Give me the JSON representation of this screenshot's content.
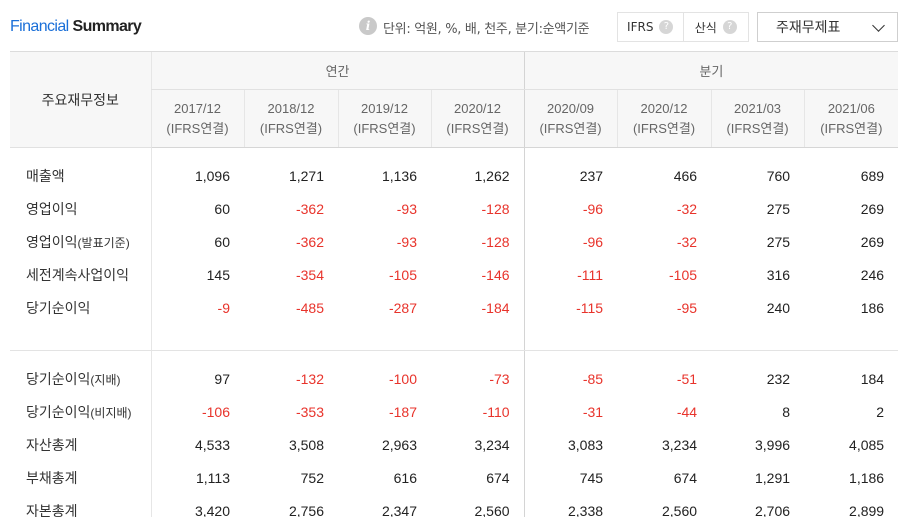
{
  "header": {
    "title_part1": "Financial",
    "title_part2": "Summary",
    "unit_text": "단위: 억원, %, 배, 천주, 분기:순액기준",
    "toggle_options": [
      "IFRS",
      "산식"
    ],
    "dropdown_value": "주재무제표"
  },
  "table": {
    "label_header": "주요재무정보",
    "group_annual": "연간",
    "group_quarter": "분기",
    "periods": [
      {
        "date": "2017/12",
        "basis": "(IFRS연결)"
      },
      {
        "date": "2018/12",
        "basis": "(IFRS연결)"
      },
      {
        "date": "2019/12",
        "basis": "(IFRS연결)"
      },
      {
        "date": "2020/12",
        "basis": "(IFRS연결)"
      },
      {
        "date": "2020/09",
        "basis": "(IFRS연결)"
      },
      {
        "date": "2020/12",
        "basis": "(IFRS연결)"
      },
      {
        "date": "2021/03",
        "basis": "(IFRS연결)"
      },
      {
        "date": "2021/06",
        "basis": "(IFRS연결)"
      }
    ],
    "rows": [
      {
        "label": "매출액",
        "values": [
          "1,096",
          "1,271",
          "1,136",
          "1,262",
          "237",
          "466",
          "760",
          "689"
        ]
      },
      {
        "label": "영업이익",
        "values": [
          "60",
          "-362",
          "-93",
          "-128",
          "-96",
          "-32",
          "275",
          "269"
        ]
      },
      {
        "label": "영업이익",
        "label_suffix": "(발표기준)",
        "values": [
          "60",
          "-362",
          "-93",
          "-128",
          "-96",
          "-32",
          "275",
          "269"
        ]
      },
      {
        "label": "세전계속사업이익",
        "values": [
          "145",
          "-354",
          "-105",
          "-146",
          "-111",
          "-105",
          "316",
          "246"
        ]
      },
      {
        "label": "당기순이익",
        "values": [
          "-9",
          "-485",
          "-287",
          "-184",
          "-115",
          "-95",
          "240",
          "186"
        ]
      },
      {
        "label": "당기순이익",
        "label_suffix": "(지배)",
        "values": [
          "97",
          "-132",
          "-100",
          "-73",
          "-85",
          "-51",
          "232",
          "184"
        ]
      },
      {
        "label": "당기순이익",
        "label_suffix": "(비지배)",
        "values": [
          "-106",
          "-353",
          "-187",
          "-110",
          "-31",
          "-44",
          "8",
          "2"
        ]
      },
      {
        "label": "자산총계",
        "values": [
          "4,533",
          "3,508",
          "2,963",
          "3,234",
          "3,083",
          "3,234",
          "3,996",
          "4,085"
        ]
      },
      {
        "label": "부채총계",
        "values": [
          "1,113",
          "752",
          "616",
          "674",
          "745",
          "674",
          "1,291",
          "1,186"
        ]
      },
      {
        "label": "자본총계",
        "values": [
          "3,420",
          "2,756",
          "2,347",
          "2,560",
          "2,338",
          "2,560",
          "2,706",
          "2,899"
        ]
      }
    ]
  },
  "colors": {
    "accent": "#1a6fd8",
    "negative": "#e8332b",
    "header_bg": "#f7f7f7"
  }
}
